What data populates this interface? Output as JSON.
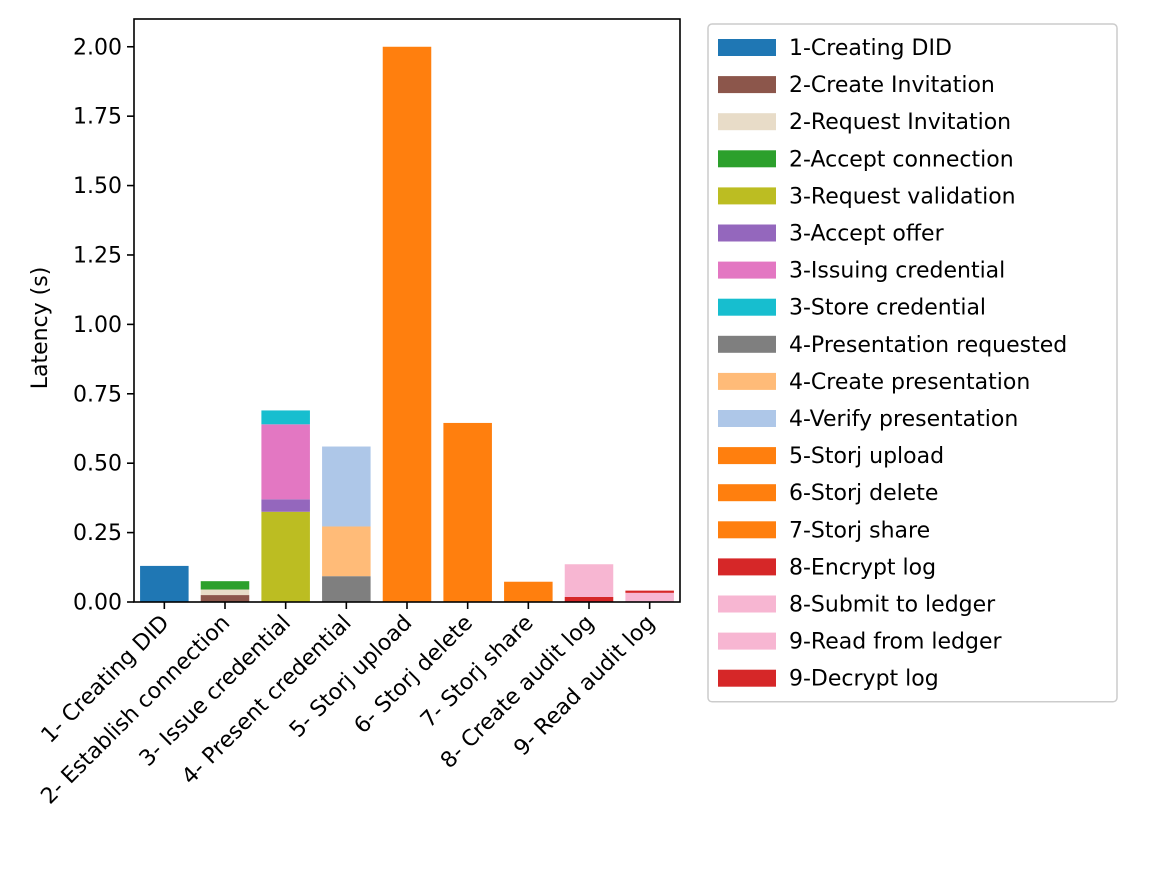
{
  "chart_data": {
    "type": "bar",
    "stacked": true,
    "title": "",
    "xlabel": "",
    "ylabel": "Latency (s)",
    "ylim": [
      0,
      2.1
    ],
    "yticks": [
      "0.00",
      "0.25",
      "0.50",
      "0.75",
      "1.00",
      "1.25",
      "1.50",
      "1.75",
      "2.00"
    ],
    "grid": false,
    "legend_position": "outside-right",
    "categories": [
      "1- Creating DID",
      "2- Establish connection",
      "3- Issue credential",
      "4- Present credential",
      "5- Storj upload",
      "6- Storj delete",
      "7- Storj share",
      "8- Create audit log",
      "9- Read audit log"
    ],
    "series": [
      {
        "name": "1-Creating DID",
        "color": "#1f77b4",
        "category": 0,
        "value": 0.13
      },
      {
        "name": "2-Create Invitation",
        "color": "#8c564b",
        "category": 1,
        "value": 0.025
      },
      {
        "name": "2-Request Invitation",
        "color": "#e8dcc8",
        "category": 1,
        "value": 0.02
      },
      {
        "name": "2-Accept connection",
        "color": "#2ca02c",
        "category": 1,
        "value": 0.03
      },
      {
        "name": "3-Request validation",
        "color": "#bcbd22",
        "category": 2,
        "value": 0.325
      },
      {
        "name": "3-Accept offer",
        "color": "#9467bd",
        "category": 2,
        "value": 0.045
      },
      {
        "name": "3-Issuing credential",
        "color": "#e377c2",
        "category": 2,
        "value": 0.27
      },
      {
        "name": "3-Store credential",
        "color": "#17becf",
        "category": 2,
        "value": 0.05
      },
      {
        "name": "4-Presentation requested",
        "color": "#7f7f7f",
        "category": 3,
        "value": 0.093
      },
      {
        "name": "4-Create presentation",
        "color": "#ffbb78",
        "category": 3,
        "value": 0.179
      },
      {
        "name": "4-Verify presentation",
        "color": "#aec7e8",
        "category": 3,
        "value": 0.288
      },
      {
        "name": "5-Storj upload",
        "color": "#ff7f0e",
        "category": 4,
        "value": 2.0
      },
      {
        "name": "6-Storj delete",
        "color": "#ff7f0e",
        "category": 5,
        "value": 0.645
      },
      {
        "name": "7-Storj share",
        "color": "#ff7f0e",
        "category": 6,
        "value": 0.073
      },
      {
        "name": "8-Encrypt log",
        "color": "#d62728",
        "category": 7,
        "value": 0.018
      },
      {
        "name": "8-Submit to ledger",
        "color": "#f7b6d2",
        "category": 7,
        "value": 0.118
      },
      {
        "name": "9-Read from ledger",
        "color": "#f7b6d2",
        "category": 8,
        "value": 0.033
      },
      {
        "name": "9-Decrypt log",
        "color": "#d62728",
        "category": 8,
        "value": 0.008
      }
    ]
  }
}
